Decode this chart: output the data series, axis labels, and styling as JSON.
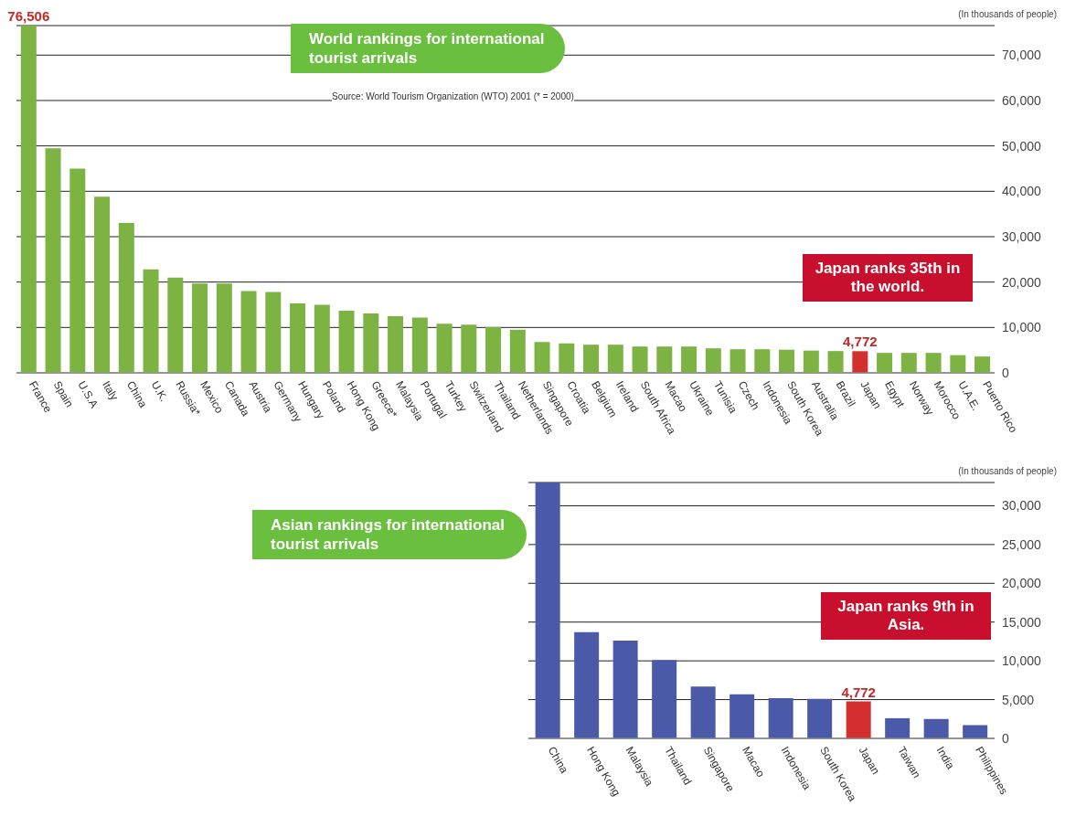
{
  "chart_data": [
    {
      "type": "bar",
      "title": "World rankings for international tourist arrivals",
      "ylabel": "(In thousands of people)",
      "categories": [
        "France",
        "Spain",
        "U.S.A",
        "Italy",
        "China",
        "U.K.",
        "Russia*",
        "Mexico",
        "Canada",
        "Austria",
        "Germany",
        "Hungary",
        "Poland",
        "Hong Kong",
        "Greece*",
        "Malaysia",
        "Portugal",
        "Turkey",
        "Switzerland",
        "Thailand",
        "Netherlands",
        "Singapore",
        "Croatia",
        "Belgium",
        "Ireland",
        "South Africa",
        "Macao",
        "Ukraine",
        "Tunisia",
        "Czech",
        "Indonesia",
        "South Korea",
        "Australia",
        "Brazil",
        "Japan",
        "Egypt",
        "Norway",
        "Morocco",
        "U.A.E.",
        "Puerto Rico"
      ],
      "values": [
        76506,
        49500,
        45000,
        38800,
        33000,
        22800,
        21000,
        19700,
        19700,
        18000,
        17800,
        15300,
        15000,
        13700,
        13100,
        12500,
        12200,
        10800,
        10600,
        10100,
        9500,
        6800,
        6500,
        6200,
        6200,
        5800,
        5800,
        5800,
        5400,
        5200,
        5200,
        5100,
        4900,
        4800,
        4772,
        4400,
        4400,
        4400,
        3900,
        3600
      ],
      "value_labels": [
        "76,506",
        null,
        null,
        null,
        null,
        null,
        null,
        null,
        null,
        null,
        null,
        null,
        null,
        null,
        null,
        null,
        null,
        null,
        null,
        null,
        null,
        null,
        null,
        null,
        null,
        null,
        null,
        null,
        null,
        null,
        null,
        null,
        null,
        null,
        "4,772",
        null,
        null,
        null,
        null,
        null
      ],
      "colors": [
        "#7cb342",
        "#7cb342",
        "#7cb342",
        "#7cb342",
        "#7cb342",
        "#7cb342",
        "#7cb342",
        "#7cb342",
        "#7cb342",
        "#7cb342",
        "#7cb342",
        "#7cb342",
        "#7cb342",
        "#7cb342",
        "#7cb342",
        "#7cb342",
        "#7cb342",
        "#7cb342",
        "#7cb342",
        "#7cb342",
        "#7cb342",
        "#7cb342",
        "#7cb342",
        "#7cb342",
        "#7cb342",
        "#7cb342",
        "#7cb342",
        "#7cb342",
        "#7cb342",
        "#7cb342",
        "#7cb342",
        "#7cb342",
        "#7cb342",
        "#7cb342",
        "#d32f2f",
        "#7cb342",
        "#7cb342",
        "#7cb342",
        "#7cb342",
        "#7cb342"
      ],
      "ylim": [
        0,
        76506
      ],
      "yticks": [
        0,
        {
          "value": 10000,
          "label": "10,000"
        },
        {
          "value": 20000,
          "label": "20,000"
        },
        {
          "value": 30000,
          "label": "30,000"
        },
        {
          "value": 40000,
          "label": "40,000"
        },
        {
          "value": 50000,
          "label": "50,000"
        },
        {
          "value": 60000,
          "label": "60,000"
        },
        {
          "value": 70000,
          "label": "70,000"
        }
      ],
      "grid": "y",
      "annotations": [
        "Source: World Tourism Organization (WTO) 2001 (* = 2000)",
        "Japan ranks 35th in the world."
      ]
    },
    {
      "type": "bar",
      "title": "Asian rankings for international tourist arrivals",
      "ylabel": "(In thousands of people)",
      "categories": [
        "China",
        "Hong Kong",
        "Malaysia",
        "Thailand",
        "Singapore",
        "Macao",
        "Indonesia",
        "South Korea",
        "Japan",
        "Taiwan",
        "India",
        "Philippines"
      ],
      "values": [
        33000,
        13700,
        12600,
        10100,
        6700,
        5700,
        5200,
        5100,
        4772,
        2600,
        2500,
        1700
      ],
      "value_labels": [
        null,
        null,
        null,
        null,
        null,
        null,
        null,
        null,
        "4,772",
        null,
        null,
        null
      ],
      "colors": [
        "#4a5aa8",
        "#4a5aa8",
        "#4a5aa8",
        "#4a5aa8",
        "#4a5aa8",
        "#4a5aa8",
        "#4a5aa8",
        "#4a5aa8",
        "#d32f2f",
        "#4a5aa8",
        "#4a5aa8",
        "#4a5aa8"
      ],
      "ylim": [
        0,
        33000
      ],
      "yticks": [
        0,
        {
          "value": 5000,
          "label": "5,000"
        },
        {
          "value": 10000,
          "label": "10,000"
        },
        {
          "value": 15000,
          "label": "15,000"
        },
        {
          "value": 20000,
          "label": "20,000"
        },
        {
          "value": 25000,
          "label": "25,000"
        },
        {
          "value": 30000,
          "label": "30,000"
        }
      ],
      "grid": "y",
      "annotations": [
        "Japan ranks 9th in Asia."
      ]
    }
  ]
}
